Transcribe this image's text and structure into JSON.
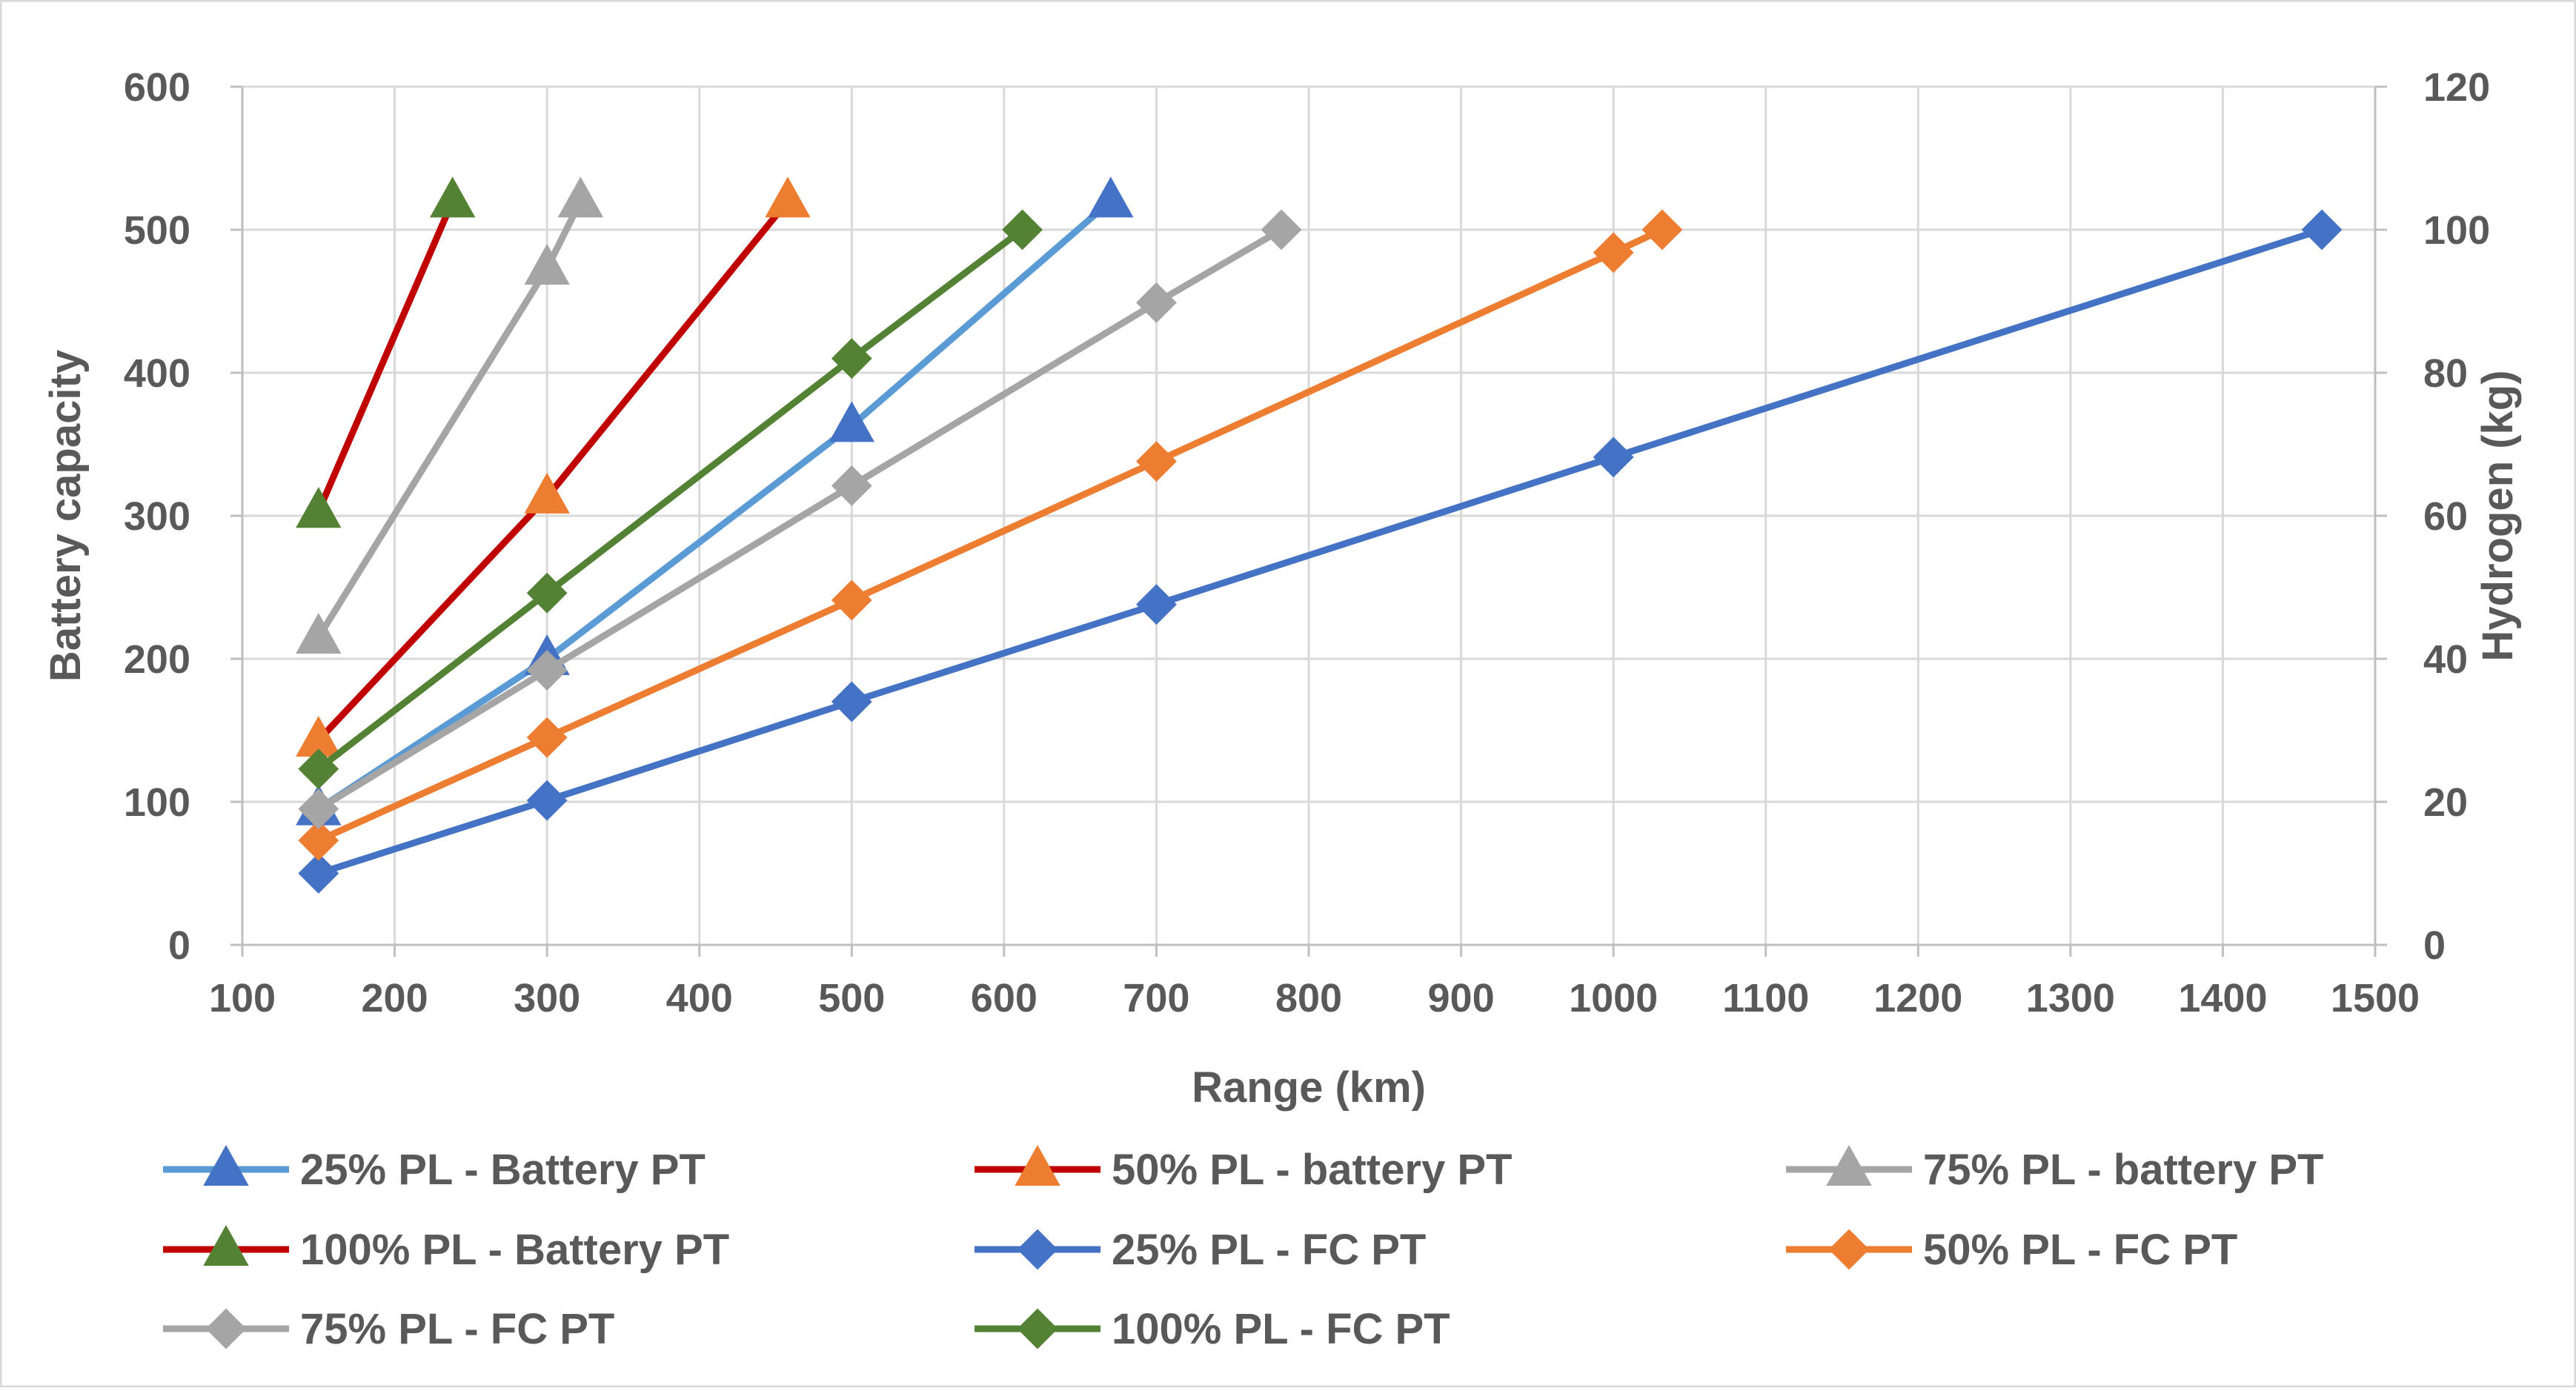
{
  "chart_data": {
    "type": "line",
    "title": "",
    "xlabel": "Range (km)",
    "ylabel": "Battery capacity",
    "y2label": "Hydrogen (kg)",
    "xlim": [
      100,
      1500
    ],
    "ylim": [
      0,
      600
    ],
    "y2lim": [
      0,
      120
    ],
    "xticks": [
      "100",
      "200",
      "300",
      "400",
      "500",
      "600",
      "700",
      "800",
      "900",
      "1000",
      "1100",
      "1200",
      "1300",
      "1400",
      "1500"
    ],
    "yticks": [
      "0",
      "100",
      "200",
      "300",
      "400",
      "500",
      "600"
    ],
    "y2ticks": [
      "0",
      "20",
      "40",
      "60",
      "80",
      "100",
      "120"
    ],
    "grid": true,
    "legend_position": "bottom",
    "series": [
      {
        "name": "25% PL - Battery PT",
        "axis": "left",
        "marker": "triangle",
        "color": "#5B9BD5",
        "markerColor": "#4472C4",
        "x": [
          150,
          300,
          500,
          670
        ],
        "y": [
          95,
          200,
          363,
          520
        ]
      },
      {
        "name": "50% PL - battery PT",
        "axis": "left",
        "marker": "triangle",
        "color": "#C00000",
        "markerColor": "#ED7D31",
        "x": [
          150,
          300,
          458
        ],
        "y": [
          143,
          313,
          520
        ]
      },
      {
        "name": "75% PL - battery PT",
        "axis": "left",
        "marker": "triangle",
        "color": "#A5A5A5",
        "markerColor": "#A5A5A5",
        "x": [
          150,
          300,
          322
        ],
        "y": [
          215,
          473,
          520
        ]
      },
      {
        "name": "100% PL - Battery PT",
        "axis": "left",
        "marker": "triangle",
        "color": "#C00000",
        "markerColor": "#548235",
        "x": [
          150,
          238
        ],
        "y": [
          303,
          520
        ]
      },
      {
        "name": "25% PL - FC PT",
        "axis": "right",
        "marker": "diamond",
        "color": "#4472C4",
        "markerColor": "#4472C4",
        "x": [
          150,
          300,
          500,
          700,
          1000,
          1465
        ],
        "y": [
          10,
          20.2,
          34,
          47.6,
          68.2,
          100
        ]
      },
      {
        "name": "50% PL - FC PT",
        "axis": "right",
        "marker": "diamond",
        "color": "#ED7D31",
        "markerColor": "#ED7D31",
        "x": [
          150,
          300,
          500,
          700,
          1000,
          1032
        ],
        "y": [
          14.6,
          29,
          48.2,
          67.6,
          96.8,
          100
        ]
      },
      {
        "name": "75% PL - FC PT",
        "axis": "right",
        "marker": "diamond",
        "color": "#A5A5A5",
        "markerColor": "#A5A5A5",
        "x": [
          150,
          300,
          500,
          700,
          782
        ],
        "y": [
          19,
          38.4,
          64.2,
          89.8,
          100
        ]
      },
      {
        "name": "100% PL - FC PT",
        "axis": "right",
        "marker": "diamond",
        "color": "#548235",
        "markerColor": "#548235",
        "x": [
          150,
          300,
          500,
          612
        ],
        "y": [
          24.6,
          49.2,
          82,
          100
        ]
      }
    ]
  }
}
